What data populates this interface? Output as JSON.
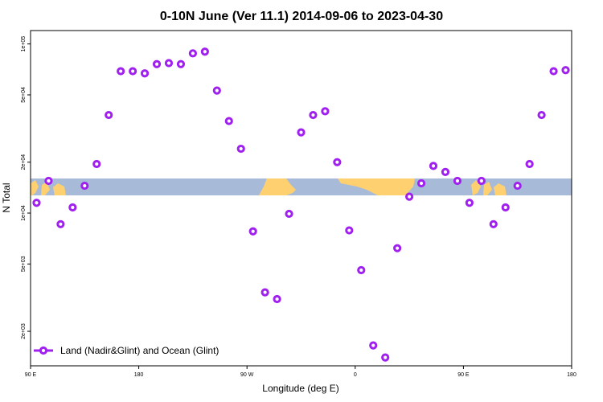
{
  "chart_data": {
    "type": "scatter",
    "title": "0-10N June (Ver 11.1)   2014-09-06 to 2023-04-30",
    "xlabel": "Longitude (deg E)",
    "ylabel": "N Total",
    "y_scale": "log",
    "xlim": [
      90,
      540
    ],
    "ylim": [
      1250,
      120000
    ],
    "x_ticks": [
      {
        "value": 90,
        "label": "90 E"
      },
      {
        "value": 180,
        "label": "180"
      },
      {
        "value": 270,
        "label": "90 W"
      },
      {
        "value": 360,
        "label": "0"
      },
      {
        "value": 450,
        "label": "90 E"
      },
      {
        "value": 540,
        "label": "180"
      }
    ],
    "y_ticks": [
      {
        "value": 2000,
        "label": "2e+03"
      },
      {
        "value": 5000,
        "label": "5e+03"
      },
      {
        "value": 10000,
        "label": "1e+04"
      },
      {
        "value": 20000,
        "label": "2e+04"
      },
      {
        "value": 50000,
        "label": "5e+04"
      },
      {
        "value": 100000,
        "label": "1e+05"
      }
    ],
    "grid": false,
    "legend_position": "bottom-left",
    "marker_color": "#a020f0",
    "series": [
      {
        "name": "Land (Nadir&Glint) and Ocean (Glint)",
        "points": [
          [
            95,
            11500
          ],
          [
            105,
            15500
          ],
          [
            115,
            8600
          ],
          [
            125,
            10800
          ],
          [
            135,
            14500
          ],
          [
            145,
            19500
          ],
          [
            155,
            38000
          ],
          [
            165,
            69000
          ],
          [
            175,
            69000
          ],
          [
            185,
            67000
          ],
          [
            195,
            76000
          ],
          [
            205,
            77000
          ],
          [
            215,
            76000
          ],
          [
            225,
            88000
          ],
          [
            235,
            90000
          ],
          [
            245,
            53000
          ],
          [
            255,
            35000
          ],
          [
            265,
            24000
          ],
          [
            275,
            7800
          ],
          [
            285,
            3400
          ],
          [
            295,
            3100
          ],
          [
            305,
            9900
          ],
          [
            315,
            30000
          ],
          [
            325,
            38000
          ],
          [
            335,
            40000
          ],
          [
            345,
            20000
          ],
          [
            355,
            7900
          ],
          [
            365,
            4600
          ],
          [
            375,
            1650
          ],
          [
            385,
            1400
          ],
          [
            395,
            6200
          ],
          [
            405,
            12500
          ],
          [
            415,
            15000
          ],
          [
            425,
            19000
          ],
          [
            435,
            17500
          ],
          [
            445,
            15500
          ],
          [
            455,
            11500
          ],
          [
            465,
            15500
          ],
          [
            475,
            8600
          ],
          [
            485,
            10800
          ],
          [
            495,
            14500
          ],
          [
            505,
            19500
          ],
          [
            515,
            38000
          ],
          [
            525,
            69000
          ],
          [
            535,
            70000
          ]
        ]
      }
    ]
  }
}
